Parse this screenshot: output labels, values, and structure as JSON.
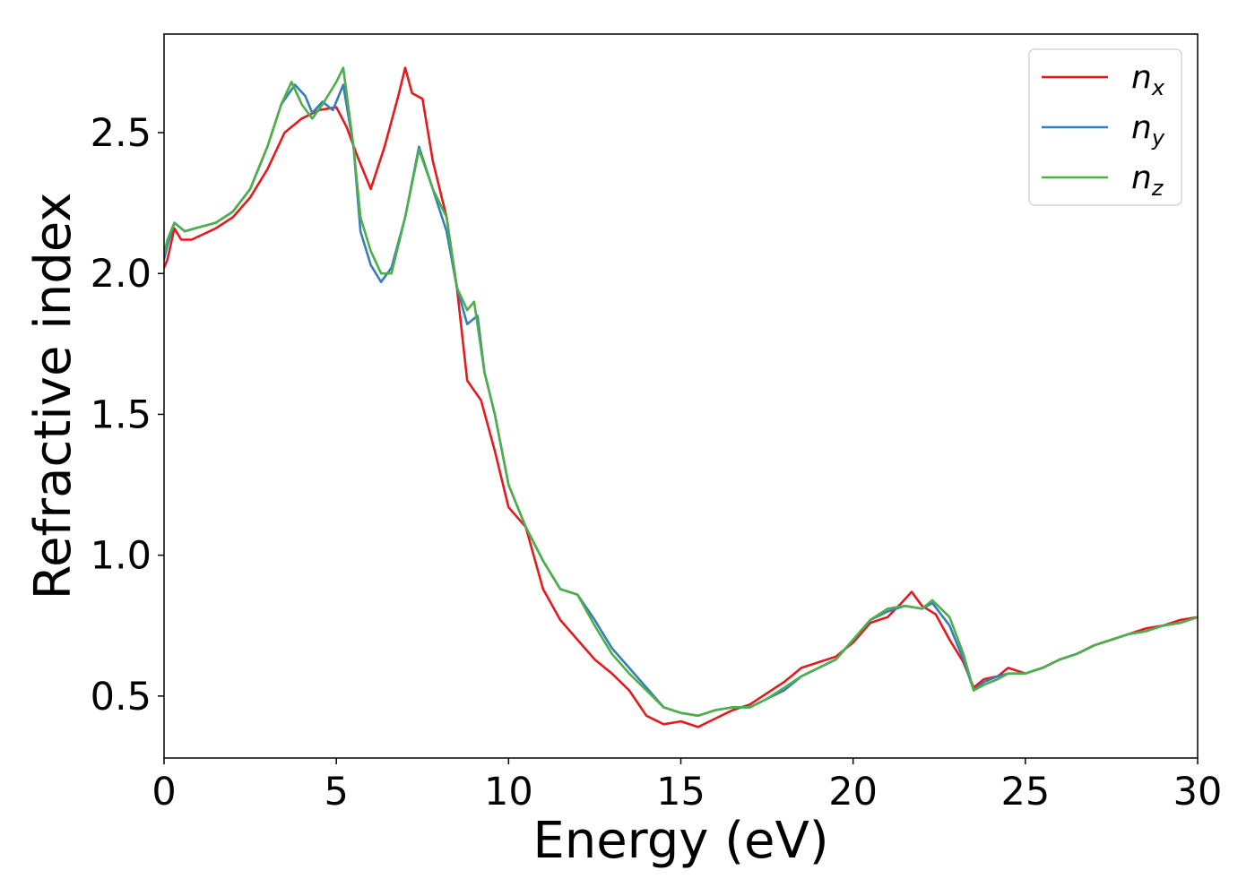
{
  "chart_data": {
    "type": "line",
    "title": "",
    "xlabel": "Energy (eV)",
    "ylabel": "Refractive index",
    "xlim": [
      0,
      30
    ],
    "ylim": [
      0.28,
      2.85
    ],
    "xticks": [
      0,
      5,
      10,
      15,
      20,
      25,
      30
    ],
    "xtick_labels": [
      "0",
      "5",
      "10",
      "15",
      "20",
      "25",
      "30"
    ],
    "yticks": [
      0.5,
      1.0,
      1.5,
      2.0,
      2.5
    ],
    "ytick_labels": [
      "0.5",
      "1.0",
      "1.5",
      "2.0",
      "2.5"
    ],
    "grid": false,
    "legend_position": "top-right",
    "series": [
      {
        "name": "n",
        "subscript": "x",
        "color": "#e41a1c",
        "points": [
          [
            0,
            2.02
          ],
          [
            0.1,
            2.05
          ],
          [
            0.3,
            2.16
          ],
          [
            0.5,
            2.12
          ],
          [
            0.8,
            2.12
          ],
          [
            1.5,
            2.16
          ],
          [
            2,
            2.2
          ],
          [
            2.5,
            2.27
          ],
          [
            3,
            2.37
          ],
          [
            3.5,
            2.5
          ],
          [
            4,
            2.55
          ],
          [
            4.5,
            2.58
          ],
          [
            5,
            2.59
          ],
          [
            5.3,
            2.52
          ],
          [
            5.6,
            2.42
          ],
          [
            6,
            2.3
          ],
          [
            6.4,
            2.45
          ],
          [
            6.8,
            2.63
          ],
          [
            7,
            2.73
          ],
          [
            7.2,
            2.64
          ],
          [
            7.5,
            2.62
          ],
          [
            7.8,
            2.4
          ],
          [
            8.2,
            2.2
          ],
          [
            8.5,
            1.95
          ],
          [
            8.8,
            1.62
          ],
          [
            9.2,
            1.55
          ],
          [
            9.6,
            1.37
          ],
          [
            10,
            1.17
          ],
          [
            10.5,
            1.1
          ],
          [
            11,
            0.88
          ],
          [
            11.5,
            0.77
          ],
          [
            12,
            0.7
          ],
          [
            12.5,
            0.63
          ],
          [
            13,
            0.58
          ],
          [
            13.5,
            0.52
          ],
          [
            14,
            0.43
          ],
          [
            14.5,
            0.4
          ],
          [
            15,
            0.41
          ],
          [
            15.5,
            0.39
          ],
          [
            16,
            0.42
          ],
          [
            16.5,
            0.45
          ],
          [
            17,
            0.47
          ],
          [
            17.5,
            0.51
          ],
          [
            18,
            0.55
          ],
          [
            18.5,
            0.6
          ],
          [
            19,
            0.62
          ],
          [
            19.5,
            0.64
          ],
          [
            20,
            0.69
          ],
          [
            20.5,
            0.76
          ],
          [
            21,
            0.78
          ],
          [
            21.4,
            0.83
          ],
          [
            21.7,
            0.87
          ],
          [
            22,
            0.82
          ],
          [
            22.4,
            0.79
          ],
          [
            22.8,
            0.7
          ],
          [
            23.2,
            0.62
          ],
          [
            23.5,
            0.53
          ],
          [
            23.8,
            0.56
          ],
          [
            24.2,
            0.57
          ],
          [
            24.5,
            0.6
          ],
          [
            25,
            0.58
          ],
          [
            25.5,
            0.6
          ],
          [
            26,
            0.63
          ],
          [
            26.5,
            0.65
          ],
          [
            27,
            0.68
          ],
          [
            27.5,
            0.7
          ],
          [
            28,
            0.72
          ],
          [
            28.5,
            0.74
          ],
          [
            29,
            0.75
          ],
          [
            29.5,
            0.77
          ],
          [
            30,
            0.78
          ]
        ]
      },
      {
        "name": "n",
        "subscript": "y",
        "color": "#377eb8",
        "points": [
          [
            0,
            2.05
          ],
          [
            0.1,
            2.1
          ],
          [
            0.3,
            2.18
          ],
          [
            0.6,
            2.15
          ],
          [
            0.9,
            2.16
          ],
          [
            1.5,
            2.18
          ],
          [
            2,
            2.22
          ],
          [
            2.5,
            2.3
          ],
          [
            3,
            2.45
          ],
          [
            3.4,
            2.6
          ],
          [
            3.8,
            2.67
          ],
          [
            4.1,
            2.63
          ],
          [
            4.3,
            2.57
          ],
          [
            4.6,
            2.61
          ],
          [
            4.9,
            2.58
          ],
          [
            5.2,
            2.67
          ],
          [
            5.5,
            2.45
          ],
          [
            5.7,
            2.15
          ],
          [
            6,
            2.03
          ],
          [
            6.3,
            1.97
          ],
          [
            6.6,
            2.02
          ],
          [
            7,
            2.2
          ],
          [
            7.4,
            2.45
          ],
          [
            7.8,
            2.3
          ],
          [
            8.2,
            2.15
          ],
          [
            8.5,
            1.95
          ],
          [
            8.8,
            1.82
          ],
          [
            9.1,
            1.85
          ],
          [
            9.3,
            1.65
          ],
          [
            9.6,
            1.5
          ],
          [
            10,
            1.25
          ],
          [
            10.5,
            1.1
          ],
          [
            11,
            0.98
          ],
          [
            11.5,
            0.88
          ],
          [
            12,
            0.86
          ],
          [
            12.5,
            0.77
          ],
          [
            13,
            0.67
          ],
          [
            13.5,
            0.6
          ],
          [
            14,
            0.53
          ],
          [
            14.5,
            0.46
          ],
          [
            15,
            0.44
          ],
          [
            15.5,
            0.43
          ],
          [
            16,
            0.45
          ],
          [
            16.5,
            0.46
          ],
          [
            17,
            0.46
          ],
          [
            17.5,
            0.49
          ],
          [
            18,
            0.52
          ],
          [
            18.5,
            0.57
          ],
          [
            19,
            0.6
          ],
          [
            19.5,
            0.63
          ],
          [
            20,
            0.7
          ],
          [
            20.5,
            0.77
          ],
          [
            21,
            0.8
          ],
          [
            21.5,
            0.82
          ],
          [
            22,
            0.81
          ],
          [
            22.3,
            0.83
          ],
          [
            22.8,
            0.75
          ],
          [
            23.2,
            0.63
          ],
          [
            23.5,
            0.52
          ],
          [
            23.8,
            0.55
          ],
          [
            24.2,
            0.57
          ],
          [
            24.5,
            0.58
          ],
          [
            25,
            0.58
          ],
          [
            25.5,
            0.6
          ],
          [
            26,
            0.63
          ],
          [
            26.5,
            0.65
          ],
          [
            27,
            0.68
          ],
          [
            27.5,
            0.7
          ],
          [
            28,
            0.72
          ],
          [
            28.5,
            0.73
          ],
          [
            29,
            0.75
          ],
          [
            29.5,
            0.76
          ],
          [
            30,
            0.78
          ]
        ]
      },
      {
        "name": "n",
        "subscript": "z",
        "color": "#4daf4a",
        "points": [
          [
            0,
            2.07
          ],
          [
            0.1,
            2.12
          ],
          [
            0.3,
            2.18
          ],
          [
            0.6,
            2.15
          ],
          [
            0.9,
            2.16
          ],
          [
            1.5,
            2.18
          ],
          [
            2,
            2.22
          ],
          [
            2.5,
            2.3
          ],
          [
            3,
            2.45
          ],
          [
            3.4,
            2.6
          ],
          [
            3.7,
            2.68
          ],
          [
            4,
            2.6
          ],
          [
            4.3,
            2.55
          ],
          [
            4.6,
            2.6
          ],
          [
            5,
            2.68
          ],
          [
            5.2,
            2.73
          ],
          [
            5.5,
            2.45
          ],
          [
            5.7,
            2.2
          ],
          [
            6,
            2.08
          ],
          [
            6.3,
            2.0
          ],
          [
            6.6,
            2.0
          ],
          [
            7,
            2.2
          ],
          [
            7.4,
            2.44
          ],
          [
            7.8,
            2.3
          ],
          [
            8.2,
            2.2
          ],
          [
            8.5,
            1.95
          ],
          [
            8.8,
            1.87
          ],
          [
            9,
            1.9
          ],
          [
            9.3,
            1.65
          ],
          [
            9.6,
            1.5
          ],
          [
            10,
            1.25
          ],
          [
            10.5,
            1.1
          ],
          [
            11,
            0.98
          ],
          [
            11.5,
            0.88
          ],
          [
            12,
            0.86
          ],
          [
            12.5,
            0.75
          ],
          [
            13,
            0.65
          ],
          [
            13.5,
            0.58
          ],
          [
            14,
            0.52
          ],
          [
            14.5,
            0.46
          ],
          [
            15,
            0.44
          ],
          [
            15.5,
            0.43
          ],
          [
            16,
            0.45
          ],
          [
            16.5,
            0.46
          ],
          [
            17,
            0.46
          ],
          [
            17.5,
            0.49
          ],
          [
            18,
            0.53
          ],
          [
            18.5,
            0.57
          ],
          [
            19,
            0.6
          ],
          [
            19.5,
            0.63
          ],
          [
            20,
            0.7
          ],
          [
            20.5,
            0.77
          ],
          [
            21,
            0.81
          ],
          [
            21.5,
            0.82
          ],
          [
            22,
            0.81
          ],
          [
            22.3,
            0.84
          ],
          [
            22.8,
            0.78
          ],
          [
            23.2,
            0.65
          ],
          [
            23.5,
            0.52
          ],
          [
            23.8,
            0.54
          ],
          [
            24.2,
            0.56
          ],
          [
            24.5,
            0.58
          ],
          [
            25,
            0.58
          ],
          [
            25.5,
            0.6
          ],
          [
            26,
            0.63
          ],
          [
            26.5,
            0.65
          ],
          [
            27,
            0.68
          ],
          [
            27.5,
            0.7
          ],
          [
            28,
            0.72
          ],
          [
            28.5,
            0.73
          ],
          [
            29,
            0.75
          ],
          [
            29.5,
            0.76
          ],
          [
            30,
            0.78
          ]
        ]
      }
    ]
  }
}
